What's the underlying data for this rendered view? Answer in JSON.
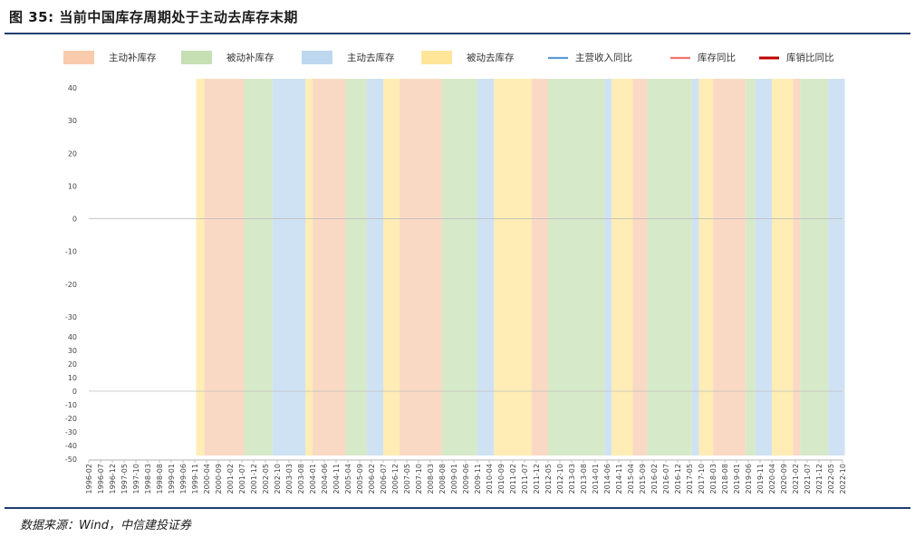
{
  "header": {
    "title": "图 35: 当前中国库存周期处于主动去库存末期"
  },
  "footer": {
    "source": "数据来源：Wind，中信建投证券"
  },
  "legend": [
    {
      "label": "主动补库存",
      "kind": "patch",
      "color": "#f8cbad"
    },
    {
      "label": "被动补库存",
      "kind": "patch",
      "color": "#c6e0b4"
    },
    {
      "label": "主动去库存",
      "kind": "patch",
      "color": "#bdd7ee"
    },
    {
      "label": "被动去库存",
      "kind": "patch",
      "color": "#ffe699"
    },
    {
      "label": "主营收入同比",
      "kind": "line",
      "color": "#5b9bd5"
    },
    {
      "label": "库存同比",
      "kind": "line",
      "color": "#f4736a"
    },
    {
      "label": "库销比同比",
      "kind": "line",
      "color": "#c00000"
    }
  ],
  "chart_data": [
    {
      "type": "line",
      "panel": "upper",
      "ylim": [
        -30,
        40
      ],
      "yticks": [
        40,
        30,
        20,
        10,
        0,
        -10,
        -20,
        -30
      ],
      "series": [
        {
          "name": "主营收入同比",
          "color": "#5b9bd5",
          "values": []
        },
        {
          "name": "库存同比",
          "color": "#f4736a",
          "values": []
        }
      ]
    },
    {
      "type": "line",
      "panel": "lower",
      "ylim": [
        -50,
        40
      ],
      "yticks": [
        40,
        30,
        20,
        10,
        0,
        -10,
        -20,
        -30,
        -40,
        -50
      ],
      "series": [
        {
          "name": "库销比同比",
          "color": "#c00000",
          "values": []
        }
      ]
    }
  ],
  "x_axis": {
    "labels": [
      "1996-02",
      "1996-07",
      "1996-12",
      "1997-05",
      "1997-10",
      "1998-03",
      "1998-08",
      "1999-01",
      "1999-06",
      "1999-11",
      "2000-04",
      "2000-09",
      "2001-02",
      "2001-07",
      "2001-12",
      "2002-05",
      "2002-10",
      "2003-03",
      "2003-08",
      "2004-01",
      "2004-06",
      "2004-11",
      "2005-04",
      "2005-09",
      "2006-02",
      "2006-07",
      "2006-12",
      "2007-05",
      "2007-10",
      "2008-03",
      "2008-08",
      "2009-01",
      "2009-06",
      "2009-11",
      "2010-04",
      "2010-09",
      "2011-02",
      "2011-07",
      "2011-12",
      "2012-05",
      "2012-10",
      "2013-03",
      "2013-08",
      "2014-01",
      "2014-06",
      "2014-11",
      "2015-04",
      "2015-09",
      "2016-02",
      "2016-07",
      "2016-12",
      "2017-05",
      "2017-10",
      "2018-03",
      "2018-08",
      "2019-01",
      "2019-06",
      "2019-11",
      "2020-04",
      "2020-09",
      "2021-02",
      "2021-07",
      "2021-12",
      "2022-05",
      "2022-10"
    ]
  },
  "phases": [
    [
      "passive_destock",
      1999.88,
      2000.17
    ],
    [
      "active_restock",
      2000.17,
      2001.58
    ],
    [
      "passive_restock",
      2001.58,
      2002.58
    ],
    [
      "active_destock",
      2002.58,
      2003.75
    ],
    [
      "passive_destock",
      2003.75,
      2004.0
    ],
    [
      "active_restock",
      2004.0,
      2005.17
    ],
    [
      "passive_restock",
      2005.17,
      2005.92
    ],
    [
      "active_destock",
      2005.92,
      2006.5
    ],
    [
      "passive_destock",
      2006.5,
      2007.08
    ],
    [
      "active_restock",
      2007.08,
      2008.58
    ],
    [
      "passive_restock",
      2008.58,
      2009.83
    ],
    [
      "active_destock",
      2009.83,
      2010.42
    ],
    [
      "passive_destock",
      2010.42,
      2011.75
    ],
    [
      "active_restock",
      2011.75,
      2012.33
    ],
    [
      "passive_restock",
      2012.33,
      2014.33
    ],
    [
      "active_destock",
      2014.33,
      2014.58
    ],
    [
      "passive_destock",
      2014.58,
      2015.33
    ],
    [
      "active_restock",
      2015.33,
      2015.83
    ],
    [
      "passive_restock",
      2015.83,
      2017.42
    ],
    [
      "active_destock",
      2017.42,
      2017.67
    ],
    [
      "passive_destock",
      2017.67,
      2018.17
    ],
    [
      "active_restock",
      2018.17,
      2019.33
    ],
    [
      "passive_restock",
      2019.33,
      2019.67
    ],
    [
      "active_destock",
      2019.67,
      2020.25
    ],
    [
      "passive_destock",
      2020.25,
      2021.0
    ],
    [
      "active_restock",
      2021.0,
      2021.25
    ],
    [
      "passive_restock",
      2021.25,
      2022.25
    ],
    [
      "active_destock",
      2022.25,
      2022.83
    ]
  ]
}
